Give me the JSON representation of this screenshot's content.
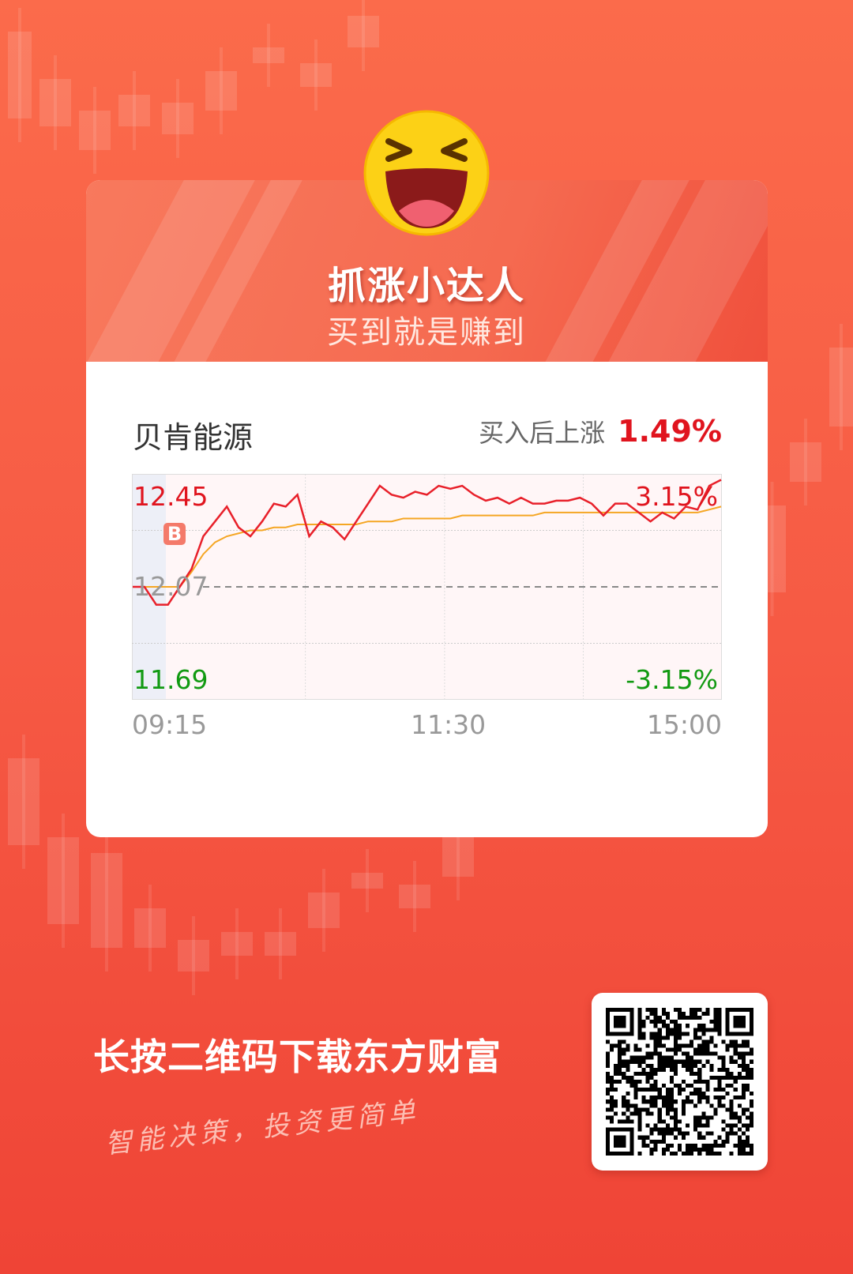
{
  "header": {
    "title": "抓涨小达人",
    "subtitle": "买到就是赚到",
    "emoji_icon": "laughing-face-icon"
  },
  "stock": {
    "name": "贝肯能源",
    "rise_label": "买入后上涨",
    "rise_value": "1.49%"
  },
  "chart_data": {
    "type": "line",
    "y_labels": {
      "high": "12.45",
      "base": "12.07",
      "low": "11.69",
      "high_pct": "3.15%",
      "low_pct": "-3.15%"
    },
    "ylim": [
      11.69,
      12.45
    ],
    "base_price": 12.07,
    "x_labels": [
      "09:15",
      "11:30",
      "15:00"
    ],
    "buy_marker": "B",
    "price": [
      12.07,
      12.07,
      12.01,
      12.01,
      12.07,
      12.13,
      12.24,
      12.29,
      12.34,
      12.27,
      12.24,
      12.29,
      12.35,
      12.34,
      12.38,
      12.24,
      12.29,
      12.27,
      12.23,
      12.29,
      12.35,
      12.41,
      12.38,
      12.37,
      12.39,
      12.38,
      12.41,
      12.4,
      12.41,
      12.38,
      12.36,
      12.37,
      12.35,
      12.37,
      12.35,
      12.35,
      12.36,
      12.36,
      12.37,
      12.35,
      12.31,
      12.35,
      12.35,
      12.32,
      12.29,
      12.32,
      12.3,
      12.34,
      12.33,
      12.41,
      12.43
    ],
    "avg": [
      12.07,
      12.07,
      12.07,
      12.07,
      12.07,
      12.12,
      12.18,
      12.22,
      12.24,
      12.25,
      12.26,
      12.26,
      12.27,
      12.27,
      12.28,
      12.28,
      12.28,
      12.28,
      12.28,
      12.28,
      12.29,
      12.29,
      12.29,
      12.3,
      12.3,
      12.3,
      12.3,
      12.3,
      12.31,
      12.31,
      12.31,
      12.31,
      12.31,
      12.31,
      12.31,
      12.32,
      12.32,
      12.32,
      12.32,
      12.32,
      12.32,
      12.32,
      12.32,
      12.32,
      12.32,
      12.32,
      12.32,
      12.32,
      12.32,
      12.33,
      12.34
    ],
    "colors": {
      "price": "#e8202a",
      "avg": "#f5a623",
      "up": "#e0141e",
      "down": "#129a12"
    }
  },
  "footer": {
    "cta": "长按二维码下载东方财富",
    "slogan": "智能决策，投资更简单",
    "qr_icon": "qr-code-icon"
  }
}
